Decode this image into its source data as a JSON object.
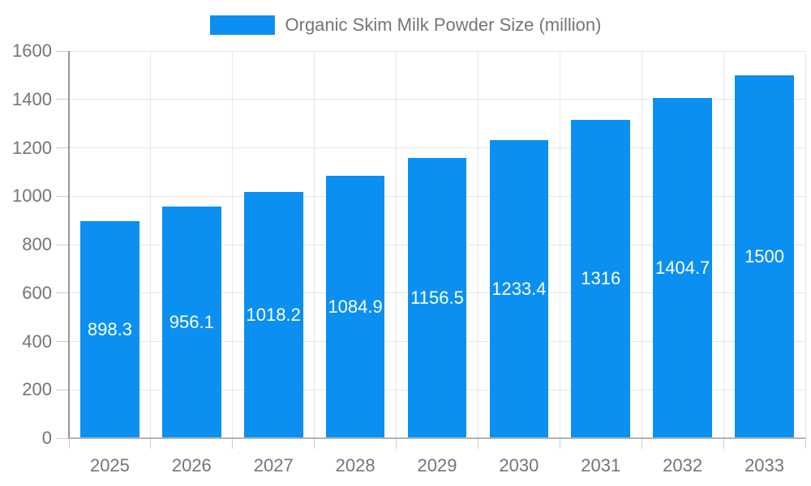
{
  "legend": {
    "label": "Organic Skim Milk Powder Size (million)"
  },
  "chart_data": {
    "type": "bar",
    "title": "Organic Skim Milk Powder Size (million)",
    "categories": [
      "2025",
      "2026",
      "2027",
      "2028",
      "2029",
      "2030",
      "2031",
      "2032",
      "2033"
    ],
    "series": [
      {
        "name": "Organic Skim Milk Powder Size (million)",
        "values": [
          898.3,
          956.1,
          1018.2,
          1084.9,
          1156.5,
          1233.4,
          1316,
          1404.7,
          1500
        ]
      }
    ],
    "value_labels": [
      "898.3",
      "956.1",
      "1018.2",
      "1084.9",
      "1156.5",
      "1233.4",
      "1316",
      "1404.7",
      "1500"
    ],
    "xlabel": "",
    "ylabel": "",
    "ylim": [
      0,
      1600
    ],
    "ytick_step": 200,
    "ytick_labels": [
      "0",
      "200",
      "400",
      "600",
      "800",
      "1000",
      "1200",
      "1400",
      "1600"
    ],
    "grid": true,
    "legend_position": "top",
    "colors": {
      "bar": "#0b90f1",
      "grid": "#e6e6e6",
      "tick": "#cccccc",
      "axis_y": "#969696",
      "axis_x": "#b3b3b3",
      "axis_text": "#757575",
      "bar_label": "#ffffff",
      "background": "#ffffff"
    }
  }
}
